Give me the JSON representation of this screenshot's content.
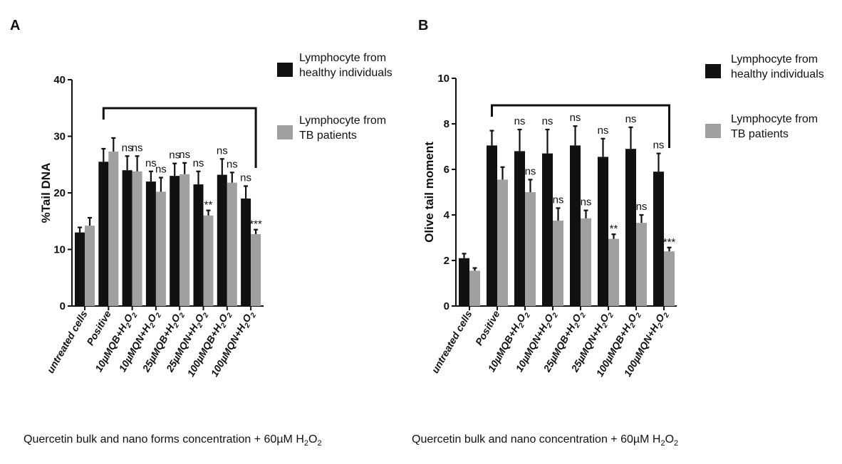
{
  "chart_data": [
    {
      "type": "bar",
      "panel": "A",
      "ylabel": "%Tail DNA",
      "xlabel": "Quercetin bulk and nano forms concentration + 60µM H",
      "xlabel_sub": "2",
      "xlabel_tail": "O",
      "xlabel_sub2": "2",
      "ylim": [
        0,
        40
      ],
      "yticks": [
        0,
        10,
        20,
        30,
        40
      ],
      "categories": [
        {
          "main": "untreated cells",
          "h2o2": false
        },
        {
          "main": "Positive",
          "h2o2": false
        },
        {
          "main": "10µMQB+H",
          "h2o2": true
        },
        {
          "main": "10µMQN+H",
          "h2o2": true
        },
        {
          "main": "25µMQB+H",
          "h2o2": true
        },
        {
          "main": "25µMQN+H",
          "h2o2": true
        },
        {
          "main": "100µMQB+H",
          "h2o2": true
        },
        {
          "main": "100µMQN+H",
          "h2o2": true
        }
      ],
      "series": [
        {
          "name": "Lymphocyte from healthy individuals",
          "legend_lines": [
            "Lymphocyte from",
            "healthy individuals"
          ],
          "color": "#111111",
          "values": [
            13.0,
            25.5,
            24.0,
            22.0,
            23.0,
            21.5,
            23.2,
            19.0
          ],
          "errors": [
            0.9,
            2.3,
            2.5,
            1.8,
            2.2,
            2.3,
            2.8,
            2.2
          ],
          "sig": [
            "",
            "",
            "ns",
            "ns",
            "ns",
            "ns",
            "ns",
            "ns"
          ]
        },
        {
          "name": "Lymphocyte from TB patients",
          "legend_lines": [
            "Lymphocyte from",
            "TB patients"
          ],
          "color": "#a0a0a0",
          "values": [
            14.2,
            27.3,
            23.8,
            20.2,
            23.3,
            16.0,
            21.8,
            12.7
          ],
          "errors": [
            1.4,
            2.4,
            2.7,
            2.5,
            2.0,
            0.9,
            1.8,
            0.8
          ],
          "sig": [
            "",
            "",
            "ns",
            "ns",
            "ns",
            "**",
            "ns",
            "***"
          ]
        }
      ],
      "bracket": {
        "from": "Positive",
        "to": "100µMQN+H"
      }
    },
    {
      "type": "bar",
      "panel": "B",
      "ylabel": "Olive tail moment",
      "xlabel": "Quercetin bulk and nano concentration + 60µM H",
      "xlabel_sub": "2",
      "xlabel_tail": "O",
      "xlabel_sub2": "2",
      "ylim": [
        0,
        10
      ],
      "yticks": [
        0,
        2,
        4,
        6,
        8,
        10
      ],
      "categories": [
        {
          "main": "untreated cells",
          "h2o2": false
        },
        {
          "main": "Positive",
          "h2o2": false
        },
        {
          "main": "10µMQB+H",
          "h2o2": true
        },
        {
          "main": "10µMQN+H",
          "h2o2": true
        },
        {
          "main": "25µMQB+H",
          "h2o2": true
        },
        {
          "main": "25µMQN+H",
          "h2o2": true
        },
        {
          "main": "100µMQB+H",
          "h2o2": true
        },
        {
          "main": "100µMQN+H",
          "h2o2": true
        }
      ],
      "series": [
        {
          "name": "Lymphocyte from healthy individuals",
          "legend_lines": [
            "Lymphocyte from",
            "healthy individuals"
          ],
          "color": "#111111",
          "values": [
            2.1,
            7.05,
            6.8,
            6.7,
            7.05,
            6.55,
            6.9,
            5.9
          ],
          "errors": [
            0.2,
            0.65,
            0.95,
            1.05,
            0.85,
            0.8,
            0.95,
            0.8
          ],
          "sig": [
            "",
            "",
            "ns",
            "ns",
            "ns",
            "ns",
            "ns",
            "ns"
          ]
        },
        {
          "name": "Lymphocyte from TB patients",
          "legend_lines": [
            "Lymphocyte from",
            "TB patients"
          ],
          "color": "#a0a0a0",
          "values": [
            1.55,
            5.55,
            5.0,
            3.75,
            3.85,
            2.95,
            3.65,
            2.4
          ],
          "errors": [
            0.12,
            0.55,
            0.55,
            0.55,
            0.35,
            0.2,
            0.35,
            0.17
          ],
          "sig": [
            "",
            "",
            "ns",
            "ns",
            "ns",
            "**",
            "ns",
            "***"
          ]
        }
      ],
      "bracket": {
        "from": "Positive",
        "to": "100µMQN+H"
      }
    }
  ],
  "h2o2_suffix": {
    "sub": "2",
    "mid": "O",
    "sub2": "2"
  }
}
